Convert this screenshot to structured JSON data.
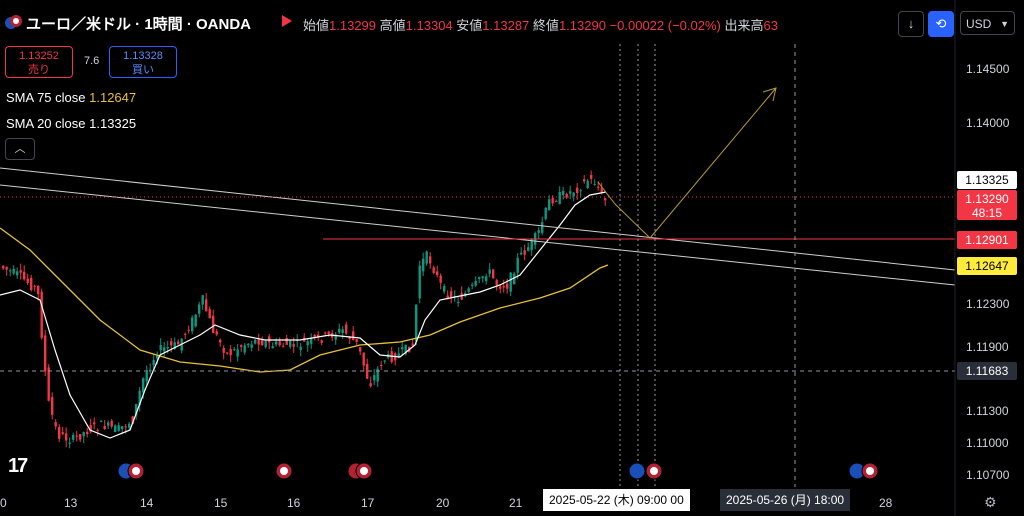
{
  "header": {
    "symbol": "ユーロ／米ドル · 1時間 · OANDA",
    "open_label": "始値",
    "open": "1.13299",
    "high_label": "高値",
    "high": "1.13304",
    "low_label": "安値",
    "low": "1.13287",
    "close_label": "終値",
    "close": "1.13290",
    "change": "−0.00022 (−0.02%)",
    "volume_label": "出来高",
    "volume": "63"
  },
  "toolbar": {
    "download_icon": "download-icon",
    "sync_icon": "sync-icon",
    "currency": "USD"
  },
  "trade": {
    "sell_price": "1.13252",
    "sell_label": "売り",
    "spread": "7.6",
    "buy_price": "1.13328",
    "buy_label": "買い"
  },
  "indicators": {
    "sma75_label": "SMA 75 close",
    "sma75_value": "1.12647",
    "sma20_label": "SMA 20 close",
    "sma20_value": "1.13325"
  },
  "price_axis": {
    "ticks": [
      "1.14500",
      "1.14000",
      "1.12300",
      "1.11900",
      "1.11300",
      "1.11000",
      "1.10700"
    ],
    "tag_sma20": "1.13325",
    "tag_close": "1.13290",
    "tag_countdown": "48:15",
    "tag_red_line": "1.12901",
    "tag_sma75": "1.12647",
    "tag_dashed": "1.11683"
  },
  "time_axis": {
    "ticks": [
      "0",
      "13",
      "14",
      "15",
      "16",
      "17",
      "20",
      "21",
      "28"
    ],
    "label_1": "2025-05-22 (木)   09:00   00",
    "label_2": "2025-05-26 (月)   18:00"
  },
  "colors": {
    "up": "#089981",
    "down": "#f23645",
    "sma75": "#e7c03a",
    "sma20": "#ffffff",
    "accent": "#2962ff"
  }
}
